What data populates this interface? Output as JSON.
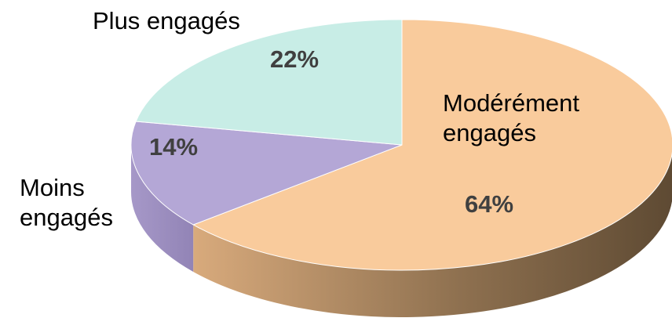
{
  "chart_data": {
    "type": "pie3d",
    "categories": [
      "Modérément engagés",
      "Moins engagés",
      "Plus engagés"
    ],
    "values": [
      64,
      14,
      22
    ],
    "value_labels": [
      "64%",
      "14%",
      "22%"
    ],
    "colors": [
      "#f9cb9c",
      "#b4a7d6",
      "#c8ede6"
    ]
  }
}
